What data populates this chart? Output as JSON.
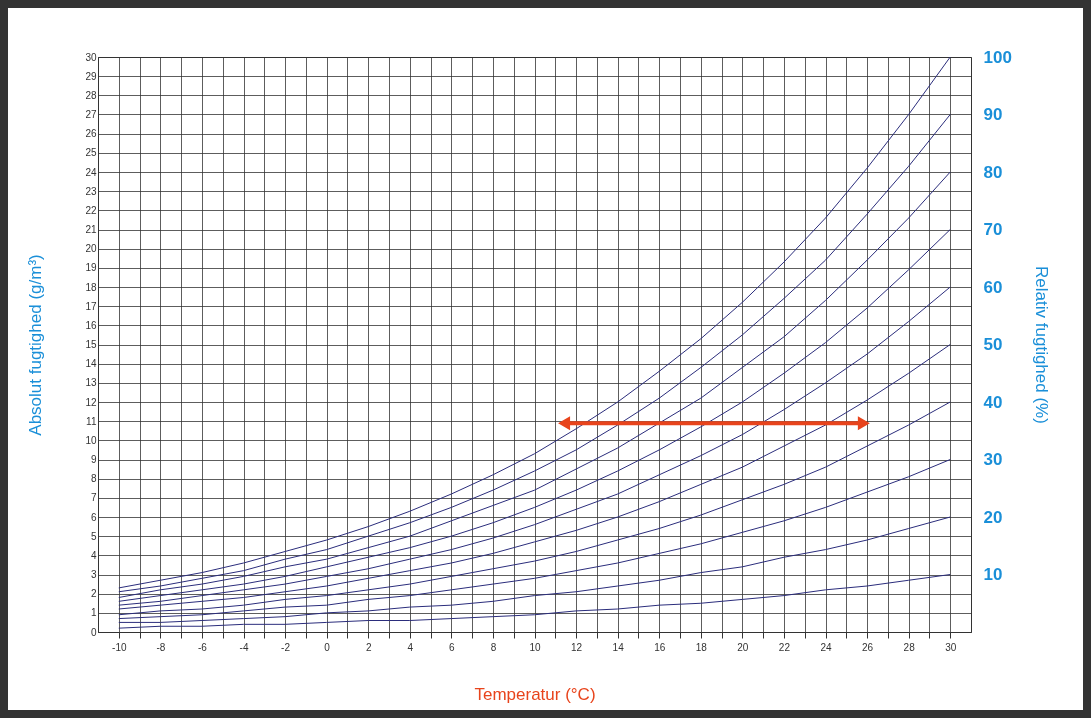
{
  "chart_data": {
    "type": "line",
    "xlabel": "Temperatur (°C)",
    "ylabel": "Absolut fugtighed (g/m³)",
    "y2label": "Relativ fugtighed (%)",
    "x": [
      -10,
      -8,
      -6,
      -4,
      -2,
      0,
      2,
      4,
      6,
      8,
      10,
      12,
      14,
      16,
      18,
      20,
      22,
      24,
      26,
      28,
      30
    ],
    "series": [
      {
        "color": "#2b2d7c",
        "values": [
          0.2,
          0.3,
          0.3,
          0.4,
          0.4,
          0.5,
          0.6,
          0.6,
          0.7,
          0.8,
          0.9,
          1.1,
          1.2,
          1.4,
          1.5,
          1.7,
          1.9,
          2.2,
          2.4,
          2.7,
          3.0
        ]
      },
      {
        "color": "#2b2d7c",
        "values": [
          0.5,
          0.5,
          0.6,
          0.7,
          0.8,
          1.0,
          1.1,
          1.3,
          1.4,
          1.6,
          1.9,
          2.1,
          2.4,
          2.7,
          3.1,
          3.4,
          3.9,
          4.3,
          4.8,
          5.4,
          6.0
        ]
      },
      {
        "color": "#2b2d7c",
        "values": [
          0.7,
          0.8,
          0.9,
          1.1,
          1.3,
          1.4,
          1.7,
          1.9,
          2.2,
          2.5,
          2.8,
          3.2,
          3.6,
          4.1,
          4.6,
          5.2,
          5.8,
          6.5,
          7.3,
          8.1,
          9.0
        ]
      },
      {
        "color": "#2b2d7c",
        "values": [
          0.9,
          1.1,
          1.2,
          1.4,
          1.7,
          1.9,
          2.2,
          2.5,
          2.9,
          3.3,
          3.7,
          4.2,
          4.8,
          5.4,
          6.1,
          6.9,
          7.7,
          8.6,
          9.7,
          10.8,
          12.0
        ]
      },
      {
        "color": "#2b2d7c",
        "values": [
          1.2,
          1.4,
          1.6,
          1.8,
          2.1,
          2.4,
          2.8,
          3.2,
          3.6,
          4.1,
          4.7,
          5.3,
          6.0,
          6.8,
          7.7,
          8.6,
          9.7,
          10.8,
          12.1,
          13.5,
          15.0
        ]
      },
      {
        "color": "#2b2d7c",
        "values": [
          1.4,
          1.6,
          1.9,
          2.2,
          2.5,
          2.9,
          3.3,
          3.8,
          4.3,
          4.9,
          5.6,
          6.4,
          7.2,
          8.2,
          9.2,
          10.3,
          11.6,
          13.0,
          14.5,
          16.2,
          18.0
        ]
      },
      {
        "color": "#2b2d7c",
        "values": [
          1.6,
          1.9,
          2.2,
          2.5,
          2.9,
          3.4,
          3.9,
          4.4,
          5.0,
          5.7,
          6.5,
          7.4,
          8.4,
          9.5,
          10.7,
          12.0,
          13.5,
          15.1,
          16.9,
          18.9,
          21.0
        ]
      },
      {
        "color": "#2b2d7c",
        "values": [
          1.8,
          2.2,
          2.5,
          2.9,
          3.4,
          3.8,
          4.4,
          5.0,
          5.8,
          6.6,
          7.4,
          8.5,
          9.6,
          10.9,
          12.2,
          13.8,
          15.4,
          17.3,
          19.4,
          21.6,
          24.0
        ]
      },
      {
        "color": "#2b2d7c",
        "values": [
          2.1,
          2.4,
          2.8,
          3.2,
          3.8,
          4.3,
          5.0,
          5.7,
          6.5,
          7.4,
          8.4,
          9.5,
          10.8,
          12.2,
          13.8,
          15.5,
          17.4,
          19.4,
          21.8,
          24.3,
          27.0
        ]
      },
      {
        "color": "#2b2d7c",
        "values": [
          2.3,
          2.7,
          3.1,
          3.6,
          4.2,
          4.8,
          5.5,
          6.3,
          7.2,
          8.2,
          9.3,
          10.6,
          12.0,
          13.6,
          15.3,
          17.2,
          19.3,
          21.6,
          24.2,
          27.0,
          30.0
        ]
      }
    ],
    "xlim": [
      -11,
      31
    ],
    "xticks": [
      {
        "value": -10,
        "label": "-10"
      },
      {
        "value": -9,
        "label": null
      },
      -8,
      {
        "value": -7,
        "label": null
      },
      -6,
      {
        "value": -5,
        "label": null
      },
      -4,
      {
        "value": -3,
        "label": null
      },
      -2,
      {
        "value": -1,
        "label": null
      },
      0,
      {
        "value": 1,
        "label": null
      },
      2,
      {
        "value": 3,
        "label": null
      },
      4,
      {
        "value": 5,
        "label": null
      },
      6,
      {
        "value": 7,
        "label": null
      },
      8,
      {
        "value": 9,
        "label": null
      },
      10,
      {
        "value": 11,
        "label": null
      },
      12,
      {
        "value": 13,
        "label": null
      },
      14,
      {
        "value": 15,
        "label": null
      },
      16,
      {
        "value": 17,
        "label": null
      },
      18,
      {
        "value": 19,
        "label": null
      },
      20,
      {
        "value": 21,
        "label": null
      },
      22,
      {
        "value": 23,
        "label": null
      },
      24,
      {
        "value": 25,
        "label": null
      },
      26,
      {
        "value": 27,
        "label": null
      },
      28,
      {
        "value": 29,
        "label": null
      },
      30
    ],
    "ylim": [
      0,
      30
    ],
    "yticks": [
      0,
      1,
      2,
      3,
      4,
      5,
      6,
      7,
      8,
      9,
      10,
      11,
      12,
      13,
      14,
      15,
      16,
      17,
      18,
      19,
      20,
      21,
      22,
      23,
      24,
      25,
      26,
      27,
      28,
      29,
      30
    ],
    "y2lim": [
      0,
      100
    ],
    "y2ticks": [
      10,
      20,
      30,
      40,
      50,
      60,
      70,
      80,
      90,
      100
    ],
    "grid": true,
    "legend": false,
    "marker": "none",
    "line_style": "solid"
  }
}
